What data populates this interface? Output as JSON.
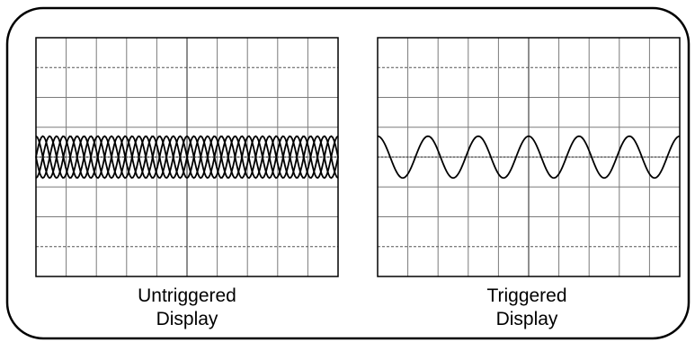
{
  "panels": [
    {
      "caption_line1": "Untriggered",
      "caption_line2": "Display",
      "triggered": false,
      "trace_count": 4,
      "cycles_shown": 11
    },
    {
      "caption_line1": "Triggered",
      "caption_line2": "Display",
      "triggered": true,
      "trace_count": 1,
      "cycles_shown": 6
    }
  ],
  "grid": {
    "columns": 10,
    "rows": 8
  },
  "colors": {
    "frame": "#000000",
    "grid": "#7a7a7a",
    "trace": "#000000",
    "background": "#ffffff"
  }
}
